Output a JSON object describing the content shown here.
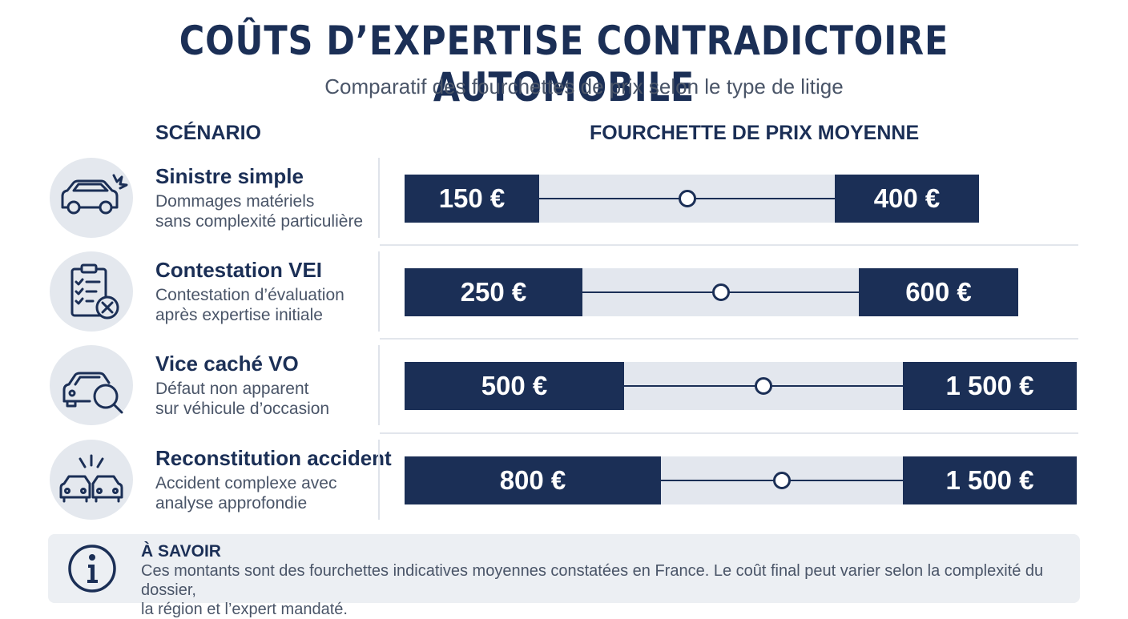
{
  "title": "COÛTS D’EXPERTISE CONTRADICTOIRE AUTOMOBILE",
  "subtitle": "Comparatif des fourchettes de prix selon le type de litige",
  "columns": {
    "scenario": "SCÉNARIO",
    "range": "FOURCHETTE DE PRIX MOYENNE"
  },
  "rows": [
    {
      "icon": "car-damage-icon",
      "title": "Sinistre simple",
      "desc1": "Dommages matériels",
      "desc2": "sans complexité particulière",
      "min_label": "150 €",
      "max_label": "400 €"
    },
    {
      "icon": "clipboard-checklist-icon",
      "title": "Contestation VEI",
      "desc1": "Contestation d’évaluation",
      "desc2": "après expertise initiale",
      "min_label": "250 €",
      "max_label": "600 €"
    },
    {
      "icon": "car-magnifier-icon",
      "title": "Vice caché VO",
      "desc1": "Défaut non apparent",
      "desc2": "sur véhicule d’occasion",
      "min_label": "500 €",
      "max_label": "1 500 €"
    },
    {
      "icon": "car-collision-icon",
      "title": "Reconstitution accident",
      "desc1": "Accident complexe avec",
      "desc2": "analyse approfondie",
      "min_label": "800 €",
      "max_label": "1 500 €"
    }
  ],
  "chart_data": {
    "type": "range",
    "title": "COÛTS D’EXPERTISE CONTRADICTOIRE AUTOMOBILE",
    "subtitle": "Comparatif des fourchettes de prix selon le type de litige",
    "categories": [
      "Sinistre simple",
      "Contestation VEI",
      "Vice caché VO",
      "Reconstitution accident"
    ],
    "min": [
      150,
      250,
      500,
      800
    ],
    "max": [
      400,
      600,
      1500,
      1500
    ],
    "unit": "€"
  },
  "note": {
    "heading": "À SAVOIR",
    "line1": "Ces montants sont des fourchettes indicatives moyennes constatées en France. Le coût final peut varier selon la complexité du dossier,",
    "line2": "la région et l’expert mandaté."
  },
  "colors": {
    "navy": "#1b2f56",
    "track": "#e3e7ee",
    "text_gray": "#4a5568"
  }
}
